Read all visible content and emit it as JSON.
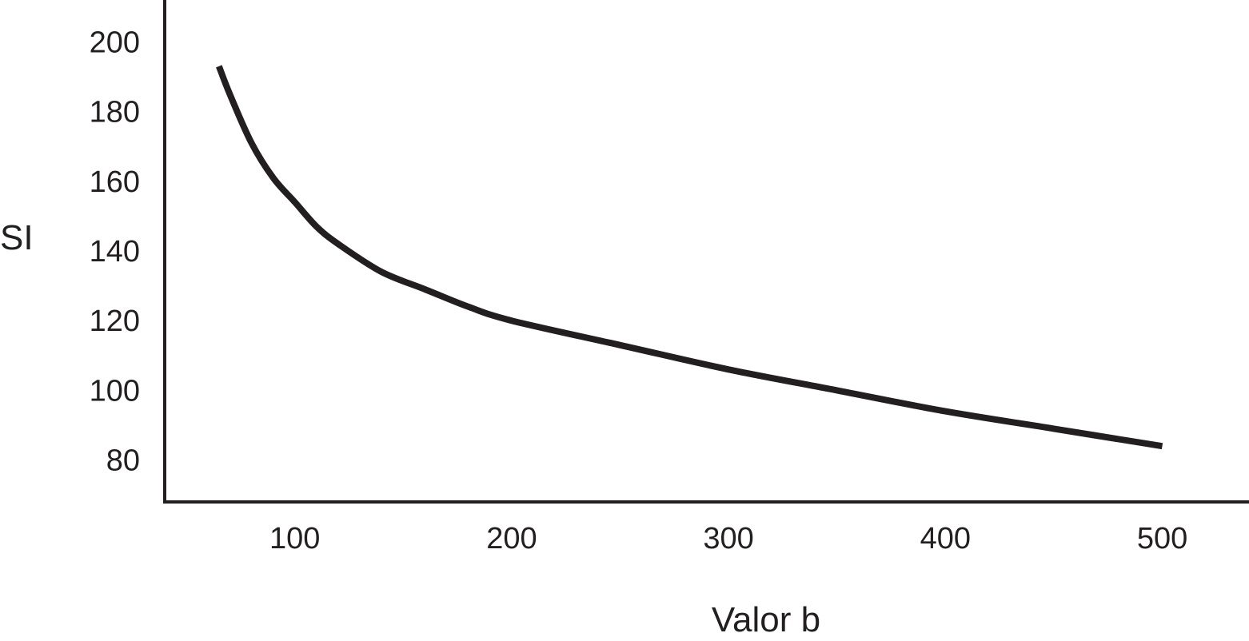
{
  "chart_data": {
    "type": "line",
    "xlabel": "Valor b",
    "ylabel": "SI",
    "xlim": [
      40,
      540
    ],
    "ylim": [
      68,
      212
    ],
    "x_ticks": [
      100,
      200,
      300,
      400,
      500
    ],
    "y_ticks": [
      80,
      100,
      120,
      140,
      160,
      180,
      200
    ],
    "grid": false,
    "line_color": "#231f20",
    "series": [
      {
        "x": [
          65,
          70,
          80,
          90,
          100,
          110,
          120,
          140,
          160,
          180,
          200,
          250,
          300,
          350,
          400,
          450,
          500
        ],
        "y": [
          193,
          185,
          171,
          161,
          154,
          147,
          142,
          134,
          129,
          124,
          120,
          113,
          106,
          100,
          94,
          89,
          84
        ]
      }
    ]
  }
}
